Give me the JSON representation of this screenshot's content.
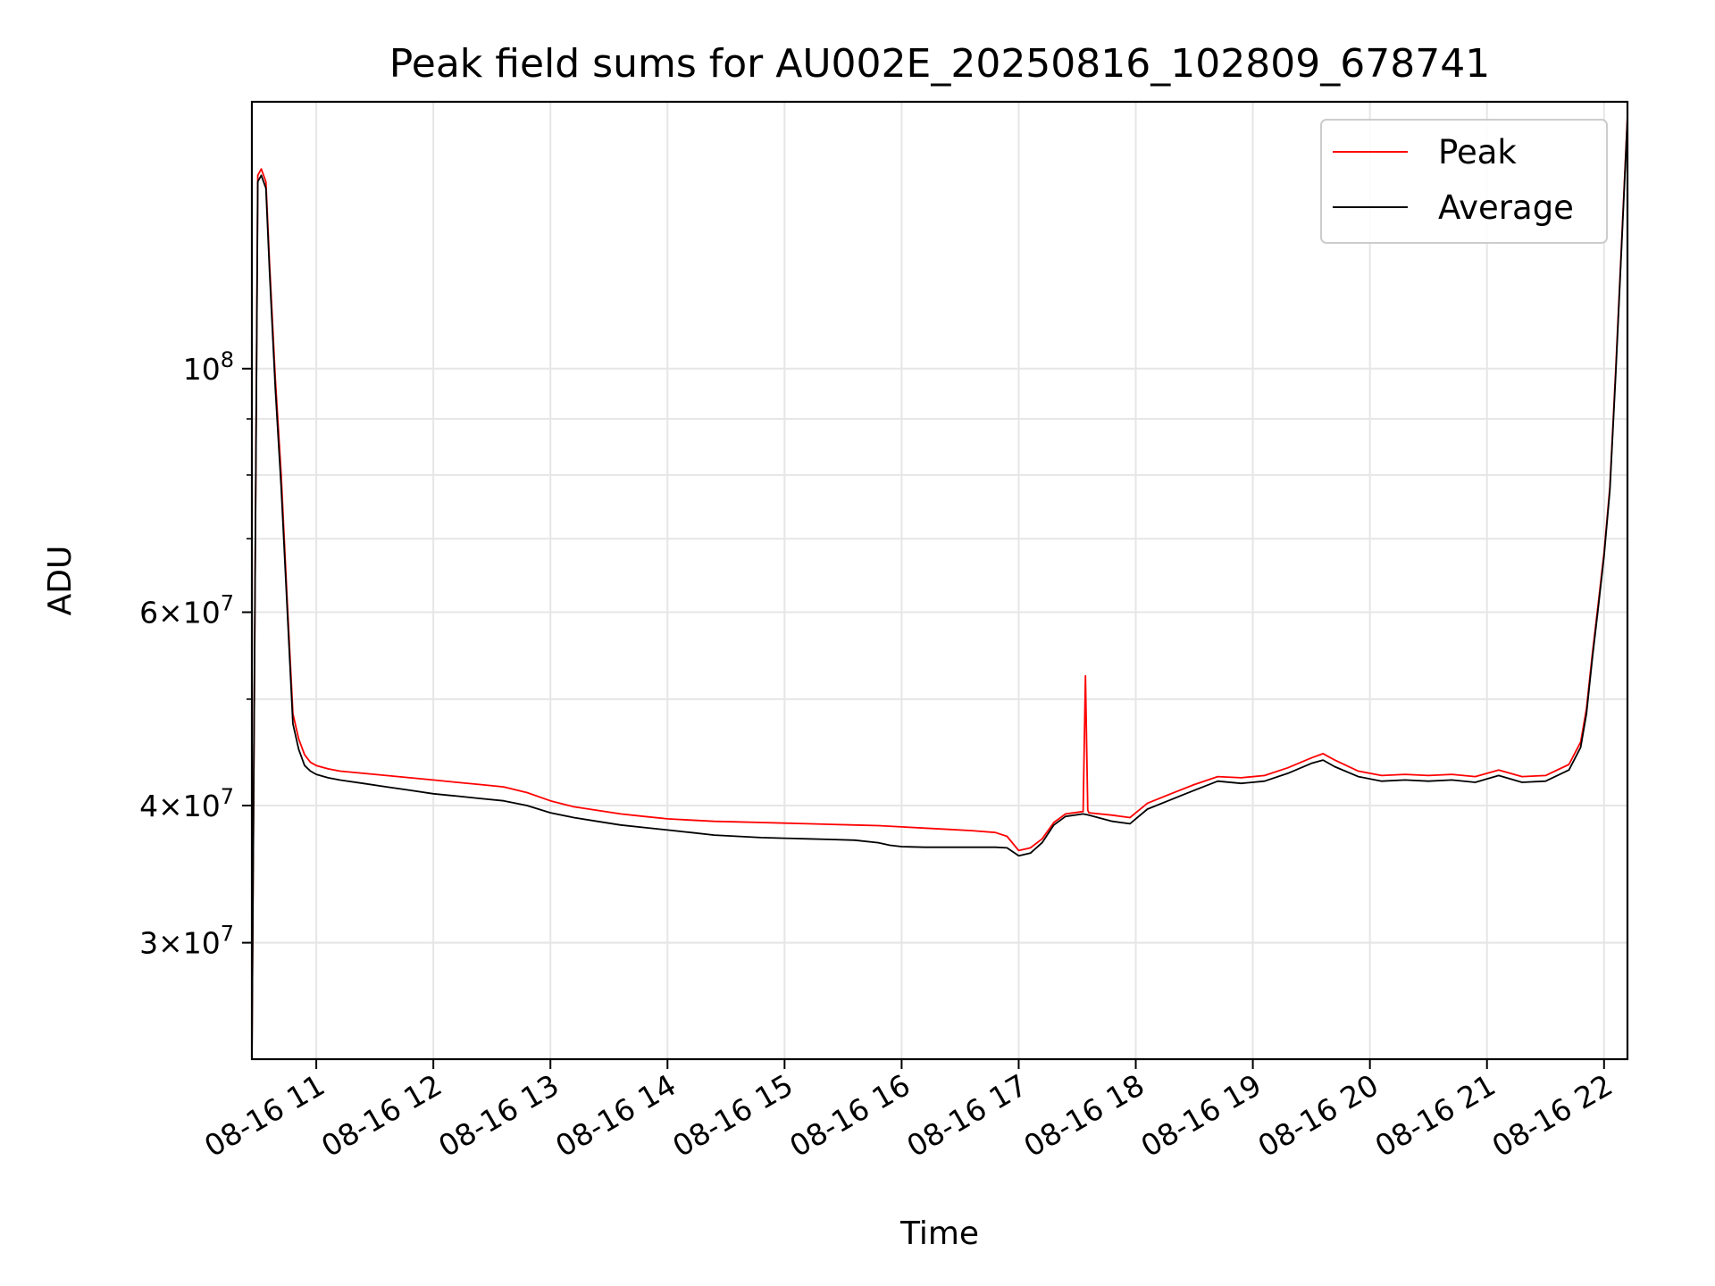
{
  "chart_data": {
    "type": "line",
    "title": "Peak field sums for AU002E_20250816_102809_678741",
    "xlabel": "Time",
    "ylabel": "ADU",
    "yscale": "log",
    "grid": true,
    "legend_position": "top-right",
    "xlim": [
      10.45,
      22.2
    ],
    "ylim": [
      23500000,
      175000000
    ],
    "x_ticks": [
      {
        "value": 11,
        "label": "08-16 11"
      },
      {
        "value": 12,
        "label": "08-16 12"
      },
      {
        "value": 13,
        "label": "08-16 13"
      },
      {
        "value": 14,
        "label": "08-16 14"
      },
      {
        "value": 15,
        "label": "08-16 15"
      },
      {
        "value": 16,
        "label": "08-16 16"
      },
      {
        "value": 17,
        "label": "08-16 17"
      },
      {
        "value": 18,
        "label": "08-16 18"
      },
      {
        "value": 19,
        "label": "08-16 19"
      },
      {
        "value": 20,
        "label": "08-16 20"
      },
      {
        "value": 21,
        "label": "08-16 21"
      },
      {
        "value": 22,
        "label": "08-16 22"
      }
    ],
    "y_ticks": [
      {
        "value": 100000000,
        "mant": "",
        "base": "10",
        "exp": "8"
      },
      {
        "value": 60000000,
        "mant": "6",
        "base": "10",
        "exp": "7"
      },
      {
        "value": 40000000,
        "mant": "4",
        "base": "10",
        "exp": "7"
      },
      {
        "value": 30000000,
        "mant": "3",
        "base": "10",
        "exp": "7"
      }
    ],
    "series": [
      {
        "name": "Peak",
        "color": "#ff0000",
        "x": [
          10.45,
          10.5,
          10.53,
          10.57,
          10.6,
          10.65,
          10.7,
          10.75,
          10.8,
          10.85,
          10.9,
          10.95,
          11.0,
          11.1,
          11.2,
          11.4,
          11.6,
          11.8,
          12.0,
          12.2,
          12.4,
          12.6,
          12.8,
          13.0,
          13.2,
          13.4,
          13.6,
          13.8,
          14.0,
          14.2,
          14.4,
          14.6,
          14.8,
          15.0,
          15.2,
          15.4,
          15.6,
          15.8,
          16.0,
          16.2,
          16.4,
          16.6,
          16.8,
          16.9,
          17.0,
          17.1,
          17.2,
          17.3,
          17.4,
          17.55,
          17.57,
          17.59,
          17.6,
          17.8,
          17.95,
          18.1,
          18.3,
          18.5,
          18.7,
          18.9,
          19.1,
          19.3,
          19.5,
          19.6,
          19.7,
          19.9,
          20.1,
          20.3,
          20.5,
          20.7,
          20.9,
          21.1,
          21.3,
          21.5,
          21.7,
          21.8,
          21.85,
          21.9,
          21.95,
          22.0,
          22.05,
          22.1,
          22.15,
          22.2
        ],
        "y": [
          23500000,
          150000000,
          152000000,
          148000000,
          125000000,
          98000000,
          80000000,
          62000000,
          48500000,
          46000000,
          44500000,
          43800000,
          43500000,
          43200000,
          43000000,
          42800000,
          42600000,
          42400000,
          42200000,
          42000000,
          41800000,
          41600000,
          41100000,
          40400000,
          39900000,
          39600000,
          39300000,
          39100000,
          38900000,
          38800000,
          38700000,
          38650000,
          38600000,
          38550000,
          38500000,
          38450000,
          38400000,
          38350000,
          38250000,
          38150000,
          38050000,
          37950000,
          37800000,
          37500000,
          36400000,
          36600000,
          37300000,
          38600000,
          39300000,
          39500000,
          52500000,
          39600000,
          39400000,
          39200000,
          39000000,
          40200000,
          41000000,
          41800000,
          42500000,
          42400000,
          42600000,
          43300000,
          44200000,
          44600000,
          44000000,
          43000000,
          42600000,
          42700000,
          42600000,
          42700000,
          42500000,
          43100000,
          42500000,
          42600000,
          43600000,
          45700000,
          49000000,
          55000000,
          61000000,
          68000000,
          78000000,
          100000000,
          130000000,
          170000000
        ]
      },
      {
        "name": "Average",
        "color": "#000000",
        "x": [
          10.45,
          10.5,
          10.53,
          10.57,
          10.6,
          10.65,
          10.7,
          10.75,
          10.8,
          10.85,
          10.9,
          10.95,
          11.0,
          11.1,
          11.2,
          11.4,
          11.6,
          11.8,
          12.0,
          12.2,
          12.4,
          12.6,
          12.8,
          13.0,
          13.2,
          13.4,
          13.6,
          13.8,
          14.0,
          14.2,
          14.4,
          14.6,
          14.8,
          15.0,
          15.2,
          15.4,
          15.6,
          15.8,
          15.9,
          16.0,
          16.2,
          16.4,
          16.6,
          16.8,
          16.9,
          17.0,
          17.1,
          17.2,
          17.3,
          17.4,
          17.55,
          17.6,
          17.8,
          17.95,
          18.1,
          18.3,
          18.5,
          18.7,
          18.9,
          19.1,
          19.3,
          19.5,
          19.6,
          19.7,
          19.9,
          20.1,
          20.3,
          20.5,
          20.7,
          20.9,
          21.1,
          21.3,
          21.5,
          21.7,
          21.8,
          21.85,
          21.9,
          21.95,
          22.0,
          22.05,
          22.1,
          22.15,
          22.2
        ],
        "y": [
          23500000,
          148000000,
          150000000,
          146000000,
          123000000,
          96000000,
          78000000,
          61000000,
          47500000,
          45000000,
          43500000,
          43000000,
          42700000,
          42400000,
          42200000,
          41900000,
          41600000,
          41300000,
          41000000,
          40800000,
          40600000,
          40400000,
          40000000,
          39400000,
          39000000,
          38700000,
          38400000,
          38200000,
          38000000,
          37800000,
          37600000,
          37500000,
          37400000,
          37350000,
          37300000,
          37250000,
          37200000,
          37000000,
          36800000,
          36700000,
          36650000,
          36650000,
          36650000,
          36650000,
          36600000,
          36000000,
          36200000,
          37000000,
          38400000,
          39100000,
          39300000,
          39200000,
          38700000,
          38500000,
          39700000,
          40500000,
          41300000,
          42100000,
          41900000,
          42100000,
          42800000,
          43700000,
          44000000,
          43400000,
          42500000,
          42100000,
          42200000,
          42100000,
          42200000,
          42000000,
          42600000,
          42000000,
          42100000,
          43100000,
          45200000,
          48500000,
          54500000,
          60500000,
          67500000,
          77500000,
          99000000,
          129000000,
          169000000
        ]
      }
    ]
  }
}
